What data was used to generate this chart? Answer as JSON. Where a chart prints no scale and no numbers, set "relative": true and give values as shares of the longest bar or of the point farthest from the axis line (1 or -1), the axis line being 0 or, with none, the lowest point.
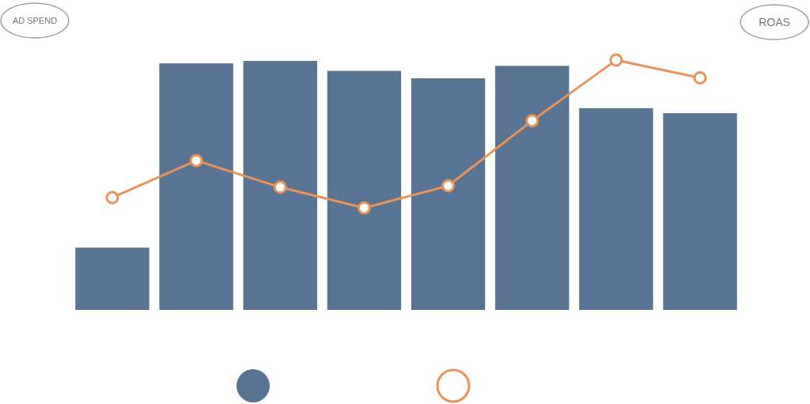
{
  "chart_data": [
    {
      "type": "bar",
      "relative": true,
      "ylabel": "AD SPEND",
      "categories": [
        null,
        null,
        null,
        null,
        null,
        null,
        null,
        null
      ],
      "color": "#587492",
      "values": [
        0.25,
        0.99,
        1,
        0.96,
        0.93,
        0.98,
        0.81,
        0.79
      ]
    },
    {
      "type": "line",
      "relative": true,
      "ylabel": "ROAS",
      "categories": [
        null,
        null,
        null,
        null,
        null,
        null,
        null,
        null
      ],
      "color": "#e8935a",
      "marker": "circle",
      "values": [
        0.07,
        0.32,
        0.14,
        0,
        0.15,
        0.59,
        1,
        0.88
      ]
    }
  ]
}
